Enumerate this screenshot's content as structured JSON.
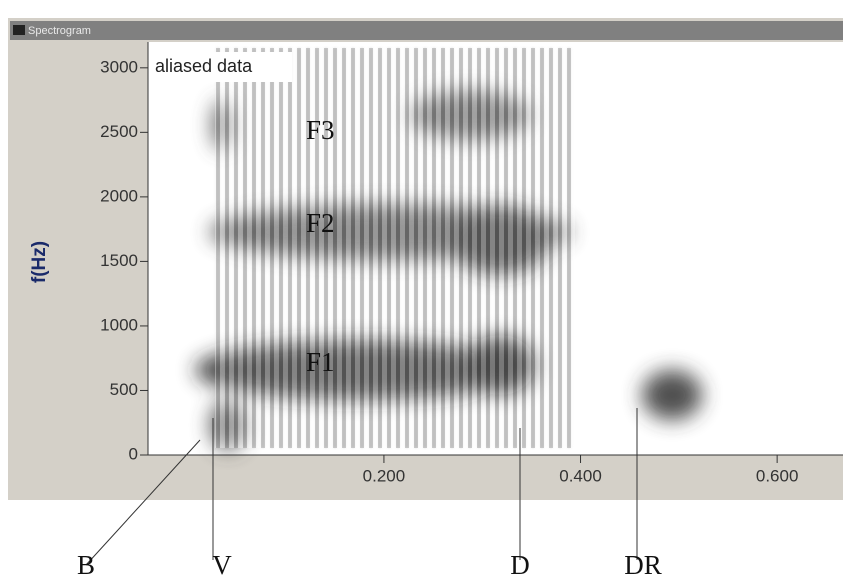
{
  "window": {
    "title": "Spectrogram"
  },
  "chart_data": {
    "type": "spectrogram",
    "ylabel": "f(Hz)",
    "ylim": [
      0,
      3200
    ],
    "yticks": [
      0,
      500,
      1000,
      1500,
      2000,
      2500,
      3000
    ],
    "xlim": [
      -0.04,
      0.667
    ],
    "xticks": [
      {
        "value": 0.2,
        "label": "0.200"
      },
      {
        "value": 0.4,
        "label": "0.400"
      },
      {
        "value": 0.6,
        "label": "0.600"
      }
    ],
    "annotations": [
      "aliased data",
      "F3",
      "F2",
      "F1"
    ]
  },
  "markers": [
    "B",
    "V",
    "D",
    "DR"
  ]
}
